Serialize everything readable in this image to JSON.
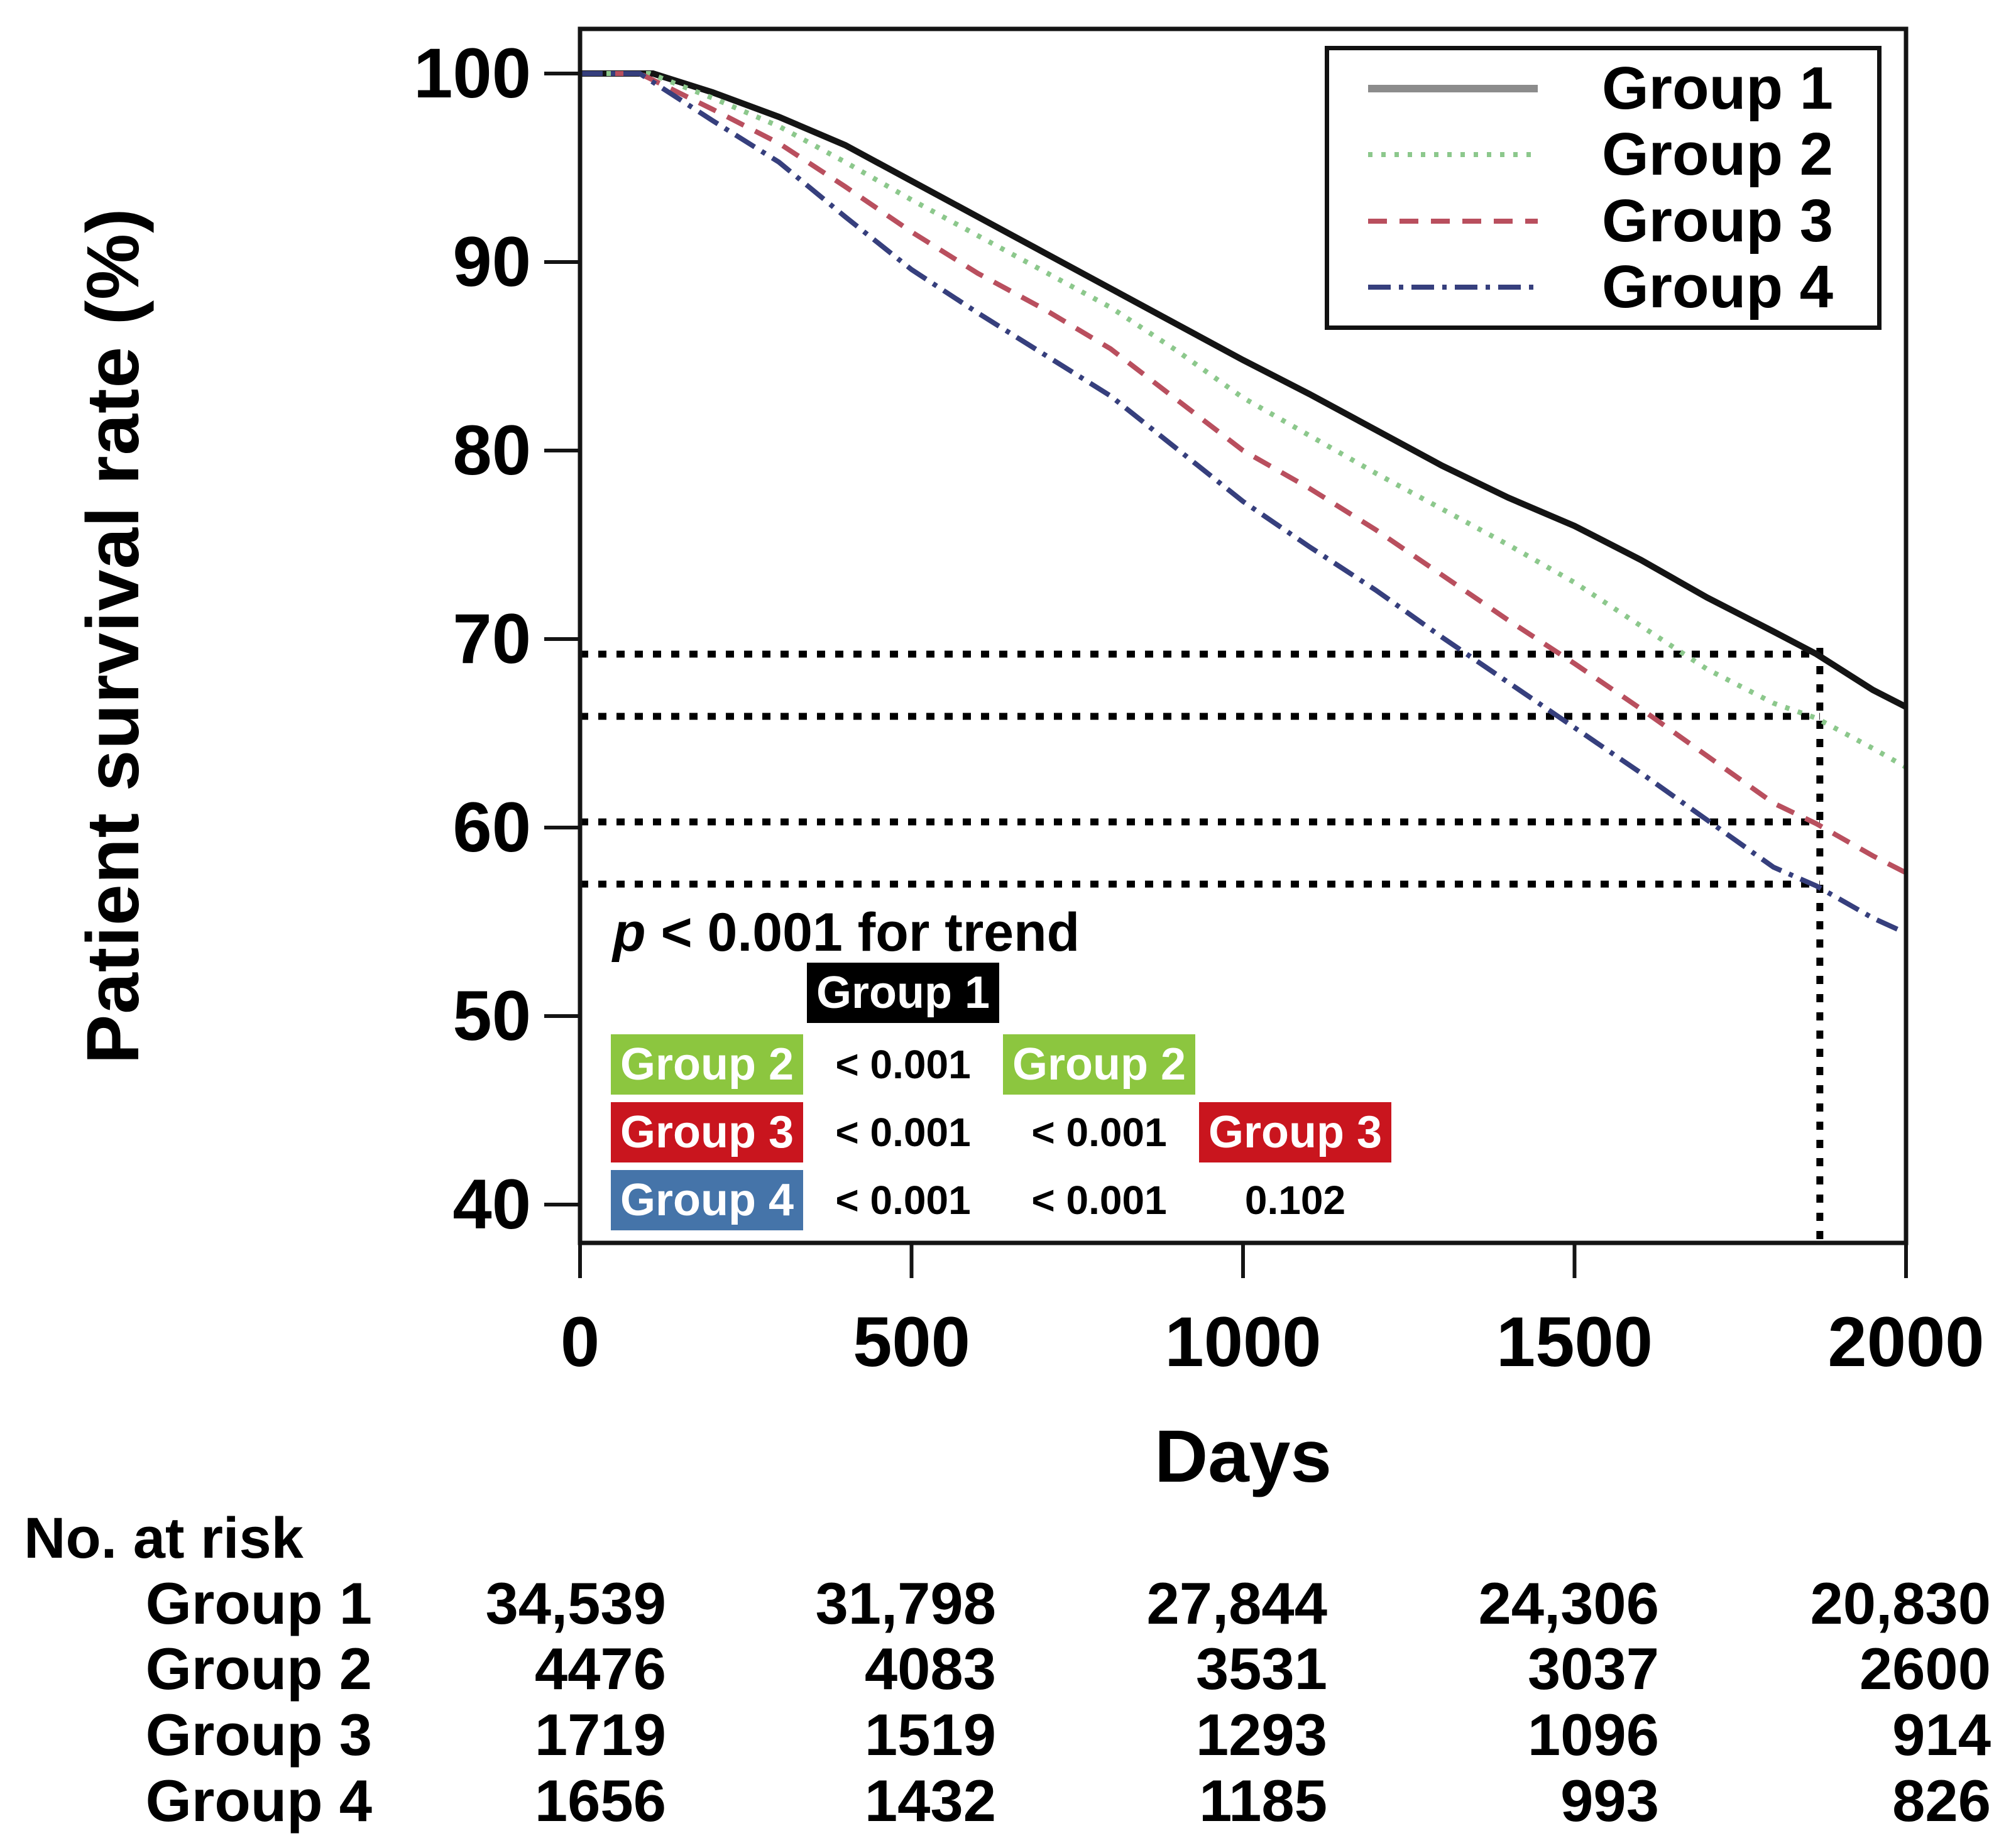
{
  "chart_data": {
    "type": "line",
    "title": "",
    "xlabel": "Days",
    "ylabel": "Patient survival rate (%)",
    "x_ticks": [
      0,
      500,
      1000,
      1500,
      2000
    ],
    "y_ticks": [
      100,
      90,
      80,
      70,
      60,
      50,
      40
    ],
    "xlim": [
      0,
      2000
    ],
    "ylim": [
      40,
      100
    ],
    "grid": false,
    "legend_position": "top-right",
    "series": [
      {
        "name": "Group 1",
        "style": "solid",
        "color": "#141414",
        "legend_color": "#8c8c8c",
        "x": [
          0,
          110,
          200,
          300,
          400,
          500,
          600,
          700,
          800,
          900,
          1000,
          1100,
          1200,
          1300,
          1400,
          1500,
          1600,
          1700,
          1800,
          1865,
          1950,
          2000
        ],
        "y": [
          100,
          100,
          99.0,
          97.7,
          96.2,
          94.3,
          92.4,
          90.5,
          88.6,
          86.7,
          84.8,
          83.0,
          81.1,
          79.2,
          77.5,
          76.0,
          74.2,
          72.2,
          70.4,
          69.2,
          67.3,
          66.4
        ]
      },
      {
        "name": "Group 2",
        "style": "dotted",
        "color": "#8cc88c",
        "x": [
          0,
          105,
          200,
          300,
          400,
          500,
          600,
          700,
          800,
          900,
          1000,
          1100,
          1200,
          1300,
          1400,
          1500,
          1600,
          1700,
          1800,
          1865,
          1950,
          2000
        ],
        "y": [
          100,
          100,
          98.7,
          97.2,
          95.3,
          93.3,
          91.4,
          89.5,
          87.6,
          85.3,
          82.8,
          80.8,
          78.8,
          76.9,
          75.0,
          73.0,
          70.7,
          68.4,
          66.6,
          65.8,
          64.2,
          63.2
        ]
      },
      {
        "name": "Group 3",
        "style": "dashed",
        "color": "#b94f5e",
        "x": [
          0,
          90,
          200,
          300,
          400,
          500,
          600,
          700,
          800,
          900,
          1000,
          1100,
          1200,
          1300,
          1400,
          1500,
          1600,
          1700,
          1800,
          1865,
          1950,
          2000
        ],
        "y": [
          100,
          100,
          98.1,
          96.3,
          94.0,
          91.6,
          89.4,
          87.5,
          85.4,
          82.7,
          80.0,
          78.0,
          75.8,
          73.4,
          71.0,
          68.7,
          66.3,
          63.8,
          61.3,
          60.2,
          58.5,
          57.6
        ]
      },
      {
        "name": "Group 4",
        "style": "dashdot",
        "color": "#363f7d",
        "x": [
          0,
          90,
          200,
          300,
          400,
          500,
          600,
          700,
          800,
          900,
          1000,
          1100,
          1200,
          1300,
          1400,
          1500,
          1600,
          1700,
          1800,
          1865,
          1950,
          2000
        ],
        "y": [
          100,
          100,
          97.5,
          95.3,
          92.4,
          89.6,
          87.3,
          85.1,
          82.9,
          80.1,
          77.3,
          74.9,
          72.6,
          70.1,
          67.7,
          65.3,
          62.9,
          60.4,
          57.9,
          56.9,
          55.2,
          54.4
        ]
      }
    ],
    "reference_lines": {
      "horizontal_pct": [
        69.2,
        65.9,
        60.3,
        57.0
      ],
      "vertical_day": 1870,
      "color": "#000000"
    }
  },
  "legend": {
    "items": [
      "Group 1",
      "Group 2",
      "Group 3",
      "Group 4"
    ]
  },
  "p_table": {
    "trend_italic": "p",
    "trend_rest": " < 0.001 for trend",
    "header_group1": "Group 1",
    "row_group2": {
      "label": "Group 2",
      "vs_g1": "< 0.001",
      "label2": "Group 2"
    },
    "row_group3": {
      "label": "Group 3",
      "vs_g1": "< 0.001",
      "vs_g2": "< 0.001",
      "label2": "Group 3"
    },
    "row_group4": {
      "label": "Group 4",
      "vs_g1": "< 0.001",
      "vs_g2": "< 0.001",
      "vs_g3": "0.102"
    },
    "colors": {
      "group1_black": "#000000",
      "group2_green": "#8CC63F",
      "group3_red": "#C9151E",
      "group4_blue": "#4574A9"
    }
  },
  "risk_table": {
    "title": "No. at risk",
    "rows": [
      {
        "label": "Group 1",
        "values": [
          "34,539",
          "31,798",
          "27,844",
          "24,306",
          "20,830"
        ]
      },
      {
        "label": "Group 2",
        "values": [
          "4476",
          "4083",
          "3531",
          "3037",
          "2600"
        ]
      },
      {
        "label": "Group 3",
        "values": [
          "1719",
          "1519",
          "1293",
          "1096",
          "914"
        ]
      },
      {
        "label": "Group 4",
        "values": [
          "1656",
          "1432",
          "1185",
          "993",
          "826"
        ]
      }
    ]
  }
}
